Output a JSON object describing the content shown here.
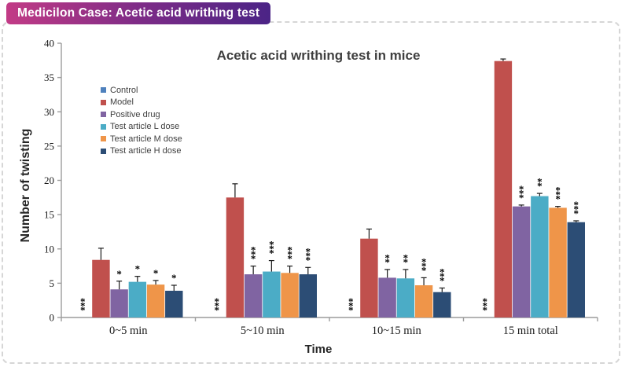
{
  "header": {
    "badge_label": "Medicilon Case: Acetic acid writhing test",
    "badge_gradient": [
      "#C23B86",
      "#7E2C87",
      "#4B2486"
    ],
    "border_color": "#D6D6D6"
  },
  "chart_data": {
    "type": "bar",
    "title": "Acetic acid writhing test in mice",
    "xlabel": "Time",
    "ylabel": "Number of twisting",
    "ylim": [
      0,
      40
    ],
    "yticks": [
      0,
      5,
      10,
      15,
      20,
      25,
      30,
      35,
      40
    ],
    "categories": [
      "0~5 min",
      "5~10 min",
      "10~15 min",
      "15 min total"
    ],
    "grid": false,
    "legend_position": "inside-upper-left",
    "axis_color": "#9C9C9C",
    "error_bar_color": "#1A1A1A",
    "sig_marker_color": "#000000",
    "series": [
      {
        "name": "Control",
        "color": "#4F81BD",
        "values": [
          0,
          0,
          0,
          0
        ],
        "errors": [
          0,
          0,
          0,
          0
        ],
        "sig": [
          "***",
          "***",
          "***",
          "***"
        ]
      },
      {
        "name": "Model",
        "color": "#C0504D",
        "values": [
          8.4,
          17.5,
          11.5,
          37.4
        ],
        "errors": [
          1.7,
          2.0,
          1.4,
          0.3
        ],
        "sig": [
          "",
          "",
          "",
          ""
        ]
      },
      {
        "name": "Positive drug",
        "color": "#8064A2",
        "values": [
          4.1,
          6.3,
          5.8,
          16.2
        ],
        "errors": [
          1.2,
          1.2,
          1.2,
          0.2
        ],
        "sig": [
          "*",
          "***",
          "**",
          "***"
        ]
      },
      {
        "name": "Test article L dose",
        "color": "#4BACC6",
        "values": [
          5.2,
          6.7,
          5.7,
          17.7
        ],
        "errors": [
          0.8,
          1.6,
          1.3,
          0.4
        ],
        "sig": [
          "*",
          "***",
          "**",
          "**"
        ]
      },
      {
        "name": "Test article M dose",
        "color": "#EF9549",
        "values": [
          4.8,
          6.5,
          4.7,
          16.0
        ],
        "errors": [
          0.6,
          1.0,
          1.1,
          0.2
        ],
        "sig": [
          "*",
          "***",
          "***",
          "***"
        ]
      },
      {
        "name": "Test article H dose",
        "color": "#2C4D75",
        "values": [
          3.9,
          6.3,
          3.7,
          13.9
        ],
        "errors": [
          0.8,
          1.0,
          0.6,
          0.2
        ],
        "sig": [
          "*",
          "***",
          "***",
          "***"
        ]
      }
    ]
  }
}
